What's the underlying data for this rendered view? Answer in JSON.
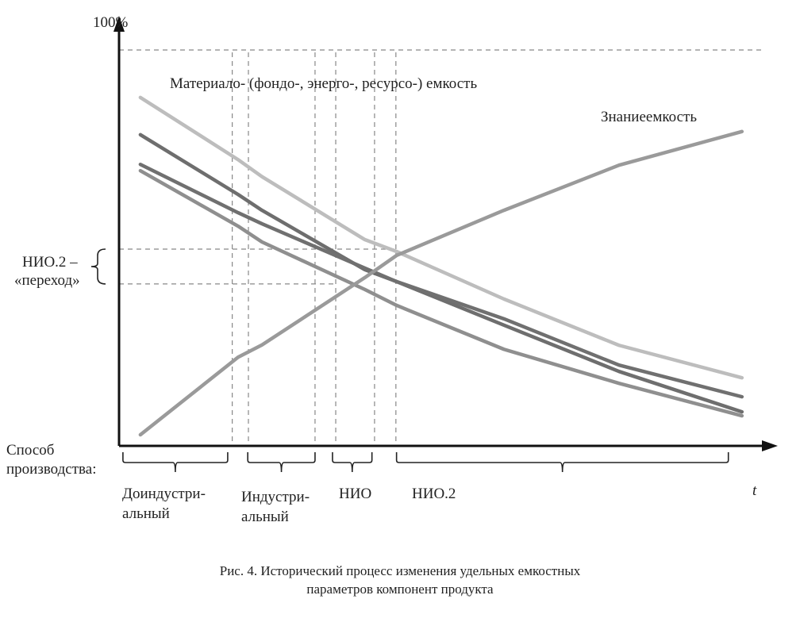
{
  "chart_data": {
    "type": "line",
    "title": "",
    "ylabel_top": "100%",
    "xlabel": "t",
    "xlim": [
      0,
      100
    ],
    "ylim": [
      0,
      100
    ],
    "x": [
      3.3,
      18.4,
      22.1,
      38.0,
      42.9,
      59.5,
      77.3,
      96.3
    ],
    "series": [
      {
        "name": "material-intensity-1",
        "color": "#bdbdbd",
        "values": [
          88,
          72.3,
          68,
          52.1,
          49.1,
          37.1,
          25.4,
          17.2
        ]
      },
      {
        "name": "material-intensity-2",
        "color": "#6e6e6e",
        "values": [
          78.6,
          63.5,
          59.5,
          44.5,
          41.5,
          30.5,
          18.8,
          8.6
        ]
      },
      {
        "name": "material-intensity-3",
        "color": "#707070",
        "values": [
          71.1,
          58.9,
          56.1,
          44.9,
          41.5,
          32.1,
          20.4,
          12.4
        ]
      },
      {
        "name": "material-intensity-4",
        "color": "#8f8f8f",
        "values": [
          69.5,
          55.5,
          51.5,
          39.5,
          35.5,
          24.4,
          15.8,
          7.6
        ]
      },
      {
        "name": "knowledge-intensity",
        "color": "#9a9a9a",
        "values": [
          2.8,
          22.4,
          25.5,
          42.5,
          48.1,
          59.5,
          70.9,
          79.4
        ]
      }
    ],
    "vertical_guides": [
      17.5,
      20,
      30.3,
      33.5,
      39.5,
      42.8
    ],
    "horizontal_guides": [
      100,
      49.7,
      40.9
    ],
    "annotations": {
      "material": "Материало- (фондо-, энерго-, ресурсо-) емкость",
      "knowledge": "Знаниеемкость",
      "transition_line1": "НИО.2 –",
      "transition_line2": "«переход»"
    },
    "periods_label_line1": "Способ",
    "periods_label_line2": "производства:",
    "periods": [
      {
        "range": [
          0.6,
          16.8
        ],
        "line1": "Доиндустри-",
        "line2": "альный"
      },
      {
        "range": [
          19.9,
          30.3
        ],
        "line1": "Индустри-",
        "line2": "альный"
      },
      {
        "range": [
          33,
          39.1
        ],
        "line1": "НИО",
        "line2": ""
      },
      {
        "range": [
          42.9,
          94.2
        ],
        "line1": "НИО.2",
        "line2": ""
      }
    ]
  },
  "caption": {
    "line1": "Рис. 4. Исторический процесс изменения удельных емкостных",
    "line2": "параметров компонент продукта"
  }
}
